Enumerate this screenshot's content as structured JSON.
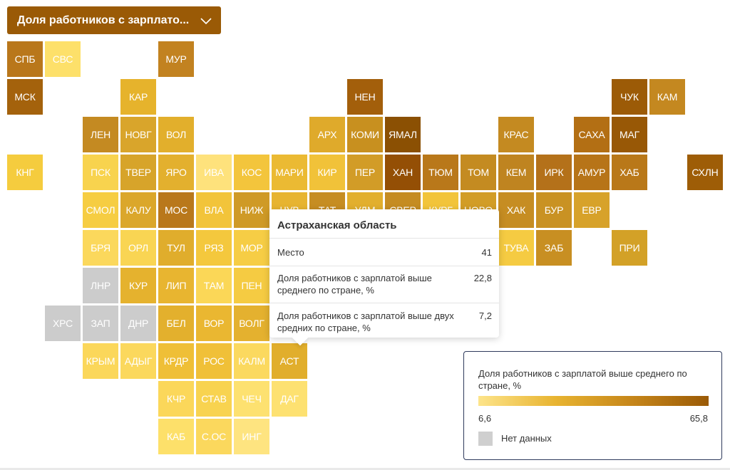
{
  "dropdown": {
    "label": "Доля работников с зарплато..."
  },
  "tiles": [
    {
      "name": "СПБ",
      "col": 0,
      "row": 0,
      "color": "#b9771b"
    },
    {
      "name": "СВС",
      "col": 1,
      "row": 0,
      "color": "#fde06a"
    },
    {
      "name": "МУР",
      "col": 4,
      "row": 0,
      "color": "#c28220"
    },
    {
      "name": "МСК",
      "col": 0,
      "row": 1,
      "color": "#a4620c"
    },
    {
      "name": "КАР",
      "col": 3,
      "row": 1,
      "color": "#e6b32c"
    },
    {
      "name": "НЕН",
      "col": 9,
      "row": 1,
      "color": "#a35f0b"
    },
    {
      "name": "ЧУК",
      "col": 16,
      "row": 1,
      "color": "#9c5b07"
    },
    {
      "name": "КАМ",
      "col": 17,
      "row": 1,
      "color": "#c48820"
    },
    {
      "name": "ЛЕН",
      "col": 2,
      "row": 2,
      "color": "#c48a22"
    },
    {
      "name": "НОВГ",
      "col": 3,
      "row": 2,
      "color": "#d9a52b"
    },
    {
      "name": "ВОЛ",
      "col": 4,
      "row": 2,
      "color": "#e2af2c"
    },
    {
      "name": "АРХ",
      "col": 8,
      "row": 2,
      "color": "#dfaa2b"
    },
    {
      "name": "КОМИ",
      "col": 9,
      "row": 2,
      "color": "#c8901f"
    },
    {
      "name": "ЯМАЛ",
      "col": 10,
      "row": 2,
      "color": "#8b5003"
    },
    {
      "name": "КРАС",
      "col": 13,
      "row": 2,
      "color": "#c48a21"
    },
    {
      "name": "САХА",
      "col": 15,
      "row": 2,
      "color": "#b36f14"
    },
    {
      "name": "МАГ",
      "col": 16,
      "row": 2,
      "color": "#985806"
    },
    {
      "name": "КНГ",
      "col": 0,
      "row": 3,
      "color": "#f5cc3e"
    },
    {
      "name": "ПСК",
      "col": 2,
      "row": 3,
      "color": "#f8d34e"
    },
    {
      "name": "ТВЕР",
      "col": 3,
      "row": 3,
      "color": "#d7a42a"
    },
    {
      "name": "ЯРО",
      "col": 4,
      "row": 3,
      "color": "#e3b02e"
    },
    {
      "name": "ИВА",
      "col": 5,
      "row": 3,
      "color": "#fee27c"
    },
    {
      "name": "КОС",
      "col": 6,
      "row": 3,
      "color": "#f3c53c"
    },
    {
      "name": "МАРИ",
      "col": 7,
      "row": 3,
      "color": "#ebba33"
    },
    {
      "name": "КИР",
      "col": 8,
      "row": 3,
      "color": "#f1c239"
    },
    {
      "name": "ПЕР",
      "col": 9,
      "row": 3,
      "color": "#d29c27"
    },
    {
      "name": "ХАН",
      "col": 10,
      "row": 3,
      "color": "#944f05"
    },
    {
      "name": "ТЮМ",
      "col": 11,
      "row": 3,
      "color": "#b9781a"
    },
    {
      "name": "ТОМ",
      "col": 12,
      "row": 3,
      "color": "#c48b21"
    },
    {
      "name": "КЕМ",
      "col": 13,
      "row": 3,
      "color": "#bf8420"
    },
    {
      "name": "ИРК",
      "col": 14,
      "row": 3,
      "color": "#b4711a"
    },
    {
      "name": "АМУР",
      "col": 15,
      "row": 3,
      "color": "#b77418"
    },
    {
      "name": "ХАБ",
      "col": 16,
      "row": 3,
      "color": "#b97819"
    },
    {
      "name": "СХЛН",
      "col": 18,
      "row": 3,
      "color": "#9e5d07"
    },
    {
      "name": "СМОЛ",
      "col": 2,
      "row": 4,
      "color": "#f6cd42"
    },
    {
      "name": "КАЛУ",
      "col": 3,
      "row": 4,
      "color": "#dba72b"
    },
    {
      "name": "МОС",
      "col": 4,
      "row": 4,
      "color": "#b9781b"
    },
    {
      "name": "ВЛА",
      "col": 5,
      "row": 4,
      "color": "#f2c43a"
    },
    {
      "name": "НИЖ",
      "col": 6,
      "row": 4,
      "color": "#cf9a26"
    },
    {
      "name": "ХАК",
      "col": 13,
      "row": 4,
      "color": "#c68d22"
    },
    {
      "name": "БУР",
      "col": 14,
      "row": 4,
      "color": "#c99223"
    },
    {
      "name": "ЕВР",
      "col": 15,
      "row": 4,
      "color": "#d7a22a"
    },
    {
      "name": "БРЯ",
      "col": 2,
      "row": 5,
      "color": "#fbd85c"
    },
    {
      "name": "ОРЛ",
      "col": 3,
      "row": 5,
      "color": "#f9d553"
    },
    {
      "name": "ТУЛ",
      "col": 4,
      "row": 5,
      "color": "#e0ad2c"
    },
    {
      "name": "РЯЗ",
      "col": 5,
      "row": 5,
      "color": "#f4c83d"
    },
    {
      "name": "МОР",
      "col": 6,
      "row": 5,
      "color": "#f6cd45"
    },
    {
      "name": "ТУВА",
      "col": 13,
      "row": 5,
      "color": "#f5cb42"
    },
    {
      "name": "ЗАБ",
      "col": 14,
      "row": 5,
      "color": "#c88f22"
    },
    {
      "name": "ПРИ",
      "col": 16,
      "row": 5,
      "color": "#d3a127"
    },
    {
      "name": "ЛНР",
      "col": 2,
      "row": 6,
      "color": "#cccccc"
    },
    {
      "name": "КУР",
      "col": 3,
      "row": 6,
      "color": "#e5b22e"
    },
    {
      "name": "ЛИП",
      "col": 4,
      "row": 6,
      "color": "#e8b530"
    },
    {
      "name": "ТАМ",
      "col": 5,
      "row": 6,
      "color": "#fbd757"
    },
    {
      "name": "ПЕН",
      "col": 6,
      "row": 6,
      "color": "#f5cb42"
    },
    {
      "name": "ХРС",
      "col": 1,
      "row": 7,
      "color": "#cccccc"
    },
    {
      "name": "ЗАП",
      "col": 2,
      "row": 7,
      "color": "#cccccc"
    },
    {
      "name": "ДНР",
      "col": 3,
      "row": 7,
      "color": "#cccccc"
    },
    {
      "name": "БЕЛ",
      "col": 4,
      "row": 7,
      "color": "#e3b02d"
    },
    {
      "name": "ВОР",
      "col": 5,
      "row": 7,
      "color": "#eab731"
    },
    {
      "name": "ВОЛГ",
      "col": 6,
      "row": 7,
      "color": "#e4b12f"
    },
    {
      "name": "КРЫМ",
      "col": 2,
      "row": 8,
      "color": "#fbd75a"
    },
    {
      "name": "АДЫГ",
      "col": 3,
      "row": 8,
      "color": "#fbd85d"
    },
    {
      "name": "КРДР",
      "col": 4,
      "row": 8,
      "color": "#efbf37"
    },
    {
      "name": "РОС",
      "col": 5,
      "row": 8,
      "color": "#f0c038"
    },
    {
      "name": "КАЛМ",
      "col": 6,
      "row": 8,
      "color": "#fbd95f"
    },
    {
      "name": "АСТ",
      "col": 7,
      "row": 8,
      "color": "#e1ae2c"
    },
    {
      "name": "КЧР",
      "col": 4,
      "row": 9,
      "color": "#fbd75a"
    },
    {
      "name": "СТАВ",
      "col": 5,
      "row": 9,
      "color": "#f8d350"
    },
    {
      "name": "ЧЕЧ",
      "col": 6,
      "row": 9,
      "color": "#fde170"
    },
    {
      "name": "ДАГ",
      "col": 7,
      "row": 9,
      "color": "#fde171"
    },
    {
      "name": "КАБ",
      "col": 4,
      "row": 10,
      "color": "#fde06a"
    },
    {
      "name": "С.ОС",
      "col": 5,
      "row": 10,
      "color": "#fbd85d"
    },
    {
      "name": "ИНГ",
      "col": 6,
      "row": 10,
      "color": "#fee480"
    },
    {
      "name": "ЧУВ",
      "col": 7,
      "row": 4,
      "color": "#e7b430"
    },
    {
      "name": "ТАТ",
      "col": 8,
      "row": 4,
      "color": "#c68d22"
    },
    {
      "name": "УДМ",
      "col": 9,
      "row": 4,
      "color": "#e2af2d"
    },
    {
      "name": "СВЕР",
      "col": 10,
      "row": 4,
      "color": "#c58c22"
    },
    {
      "name": "КУРГ",
      "col": 11,
      "row": 4,
      "color": "#f2c43a"
    },
    {
      "name": "НОВО",
      "col": 12,
      "row": 4,
      "color": "#d29d27"
    }
  ],
  "tooltip": {
    "title": "Астраханская область",
    "rows": [
      {
        "label": "Место",
        "value": "41"
      },
      {
        "label": "Доля работников с зарплатой выше среднего по стране, %",
        "value": "22,8"
      },
      {
        "label": "Доля работников с зарплатой выше двух средних по стране, %",
        "value": "7,2"
      }
    ]
  },
  "legend": {
    "title": "Доля работников с зарплатой выше среднего по стране, %",
    "min": "6,6",
    "max": "65,8",
    "no_data": "Нет данных",
    "no_data_color": "#cfcfcf",
    "gradient": [
      "#fde48a",
      "#e8b431",
      "#c6861a",
      "#9a5a06"
    ]
  }
}
